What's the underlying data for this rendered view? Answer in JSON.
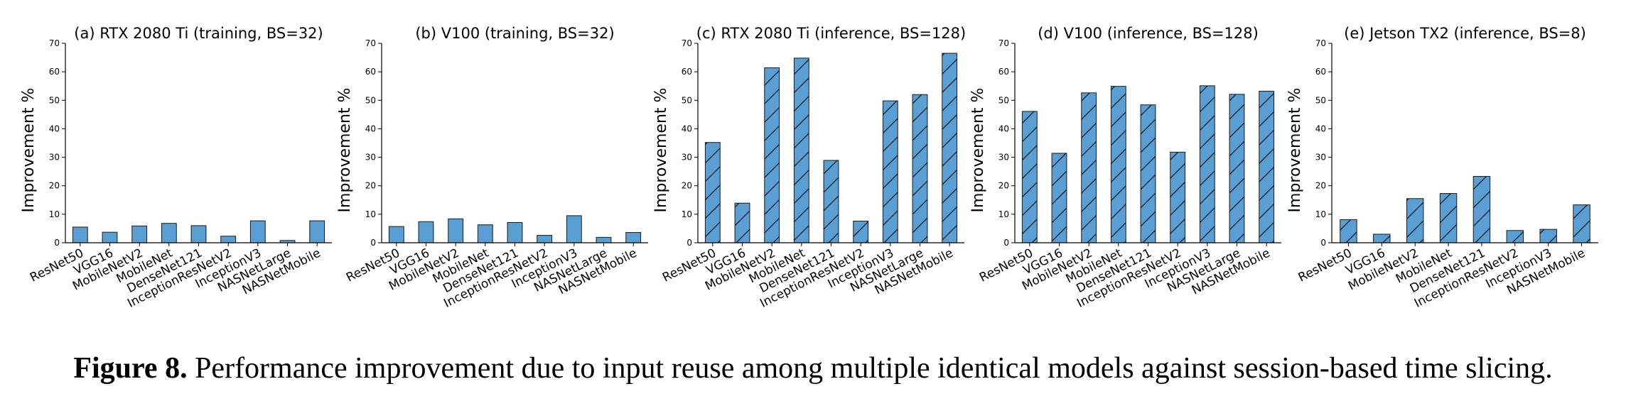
{
  "colors": {
    "bar_fill": "#5a9fd4",
    "bar_edge": "#1a1a1a",
    "axis": "#000000"
  },
  "caption": {
    "label": "Figure 8.",
    "text": " Performance improvement due to input reuse among multiple identical models against session-based time slicing."
  },
  "chart_data": [
    {
      "type": "bar",
      "title": "(a) RTX 2080 Ti (training, BS=32)",
      "ylabel": "Improvement %",
      "xlabel": "",
      "ylim": [
        0,
        70
      ],
      "yticks": [
        0,
        10,
        20,
        30,
        40,
        50,
        60,
        70
      ],
      "hatch": false,
      "categories": [
        "ResNet50",
        "VGG16",
        "MobileNetV2",
        "MobileNet",
        "DenseNet121",
        "InceptionResNetV2",
        "InceptionV3",
        "NASNetLarge",
        "NASNetMobile"
      ],
      "values": [
        5.5,
        3.7,
        5.9,
        6.8,
        6.0,
        2.3,
        7.7,
        0.8,
        7.7
      ]
    },
    {
      "type": "bar",
      "title": "(b) V100 (training, BS=32)",
      "ylabel": "Improvement %",
      "xlabel": "",
      "ylim": [
        0,
        70
      ],
      "yticks": [
        0,
        10,
        20,
        30,
        40,
        50,
        60,
        70
      ],
      "hatch": false,
      "categories": [
        "ResNet50",
        "VGG16",
        "MobileNetV2",
        "MobileNet",
        "DenseNet121",
        "InceptionResNetV2",
        "InceptionV3",
        "NASNetLarge",
        "NASNetMobile"
      ],
      "values": [
        5.7,
        7.4,
        8.4,
        6.3,
        7.1,
        2.6,
        9.5,
        1.9,
        3.6
      ]
    },
    {
      "type": "bar",
      "title": "(c) RTX 2080 Ti (inference, BS=128)",
      "ylabel": "Improvement %",
      "xlabel": "",
      "ylim": [
        0,
        70
      ],
      "yticks": [
        0,
        10,
        20,
        30,
        40,
        50,
        60,
        70
      ],
      "hatch": true,
      "categories": [
        "ResNet50",
        "VGG16",
        "MobileNetV2",
        "MobileNet",
        "DenseNet121",
        "InceptionResNetV2",
        "InceptionV3",
        "NASNetLarge",
        "NASNetMobile"
      ],
      "values": [
        35.2,
        13.9,
        61.4,
        64.8,
        28.9,
        7.6,
        49.8,
        52.0,
        66.5
      ]
    },
    {
      "type": "bar",
      "title": "(d) V100 (inference, BS=128)",
      "ylabel": "Improvement %",
      "xlabel": "",
      "ylim": [
        0,
        70
      ],
      "yticks": [
        0,
        10,
        20,
        30,
        40,
        50,
        60,
        70
      ],
      "hatch": true,
      "categories": [
        "ResNet50",
        "VGG16",
        "MobileNetV2",
        "MobileNet",
        "DenseNet121",
        "InceptionResNetV2",
        "InceptionV3",
        "NASNetLarge",
        "NASNetMobile"
      ],
      "values": [
        46.1,
        31.4,
        52.6,
        54.9,
        48.4,
        31.8,
        55.1,
        52.1,
        53.2
      ]
    },
    {
      "type": "bar",
      "title": "(e) Jetson TX2 (inference, BS=8)",
      "ylabel": "Improvement %",
      "xlabel": "",
      "ylim": [
        0,
        70
      ],
      "yticks": [
        0,
        10,
        20,
        30,
        40,
        50,
        60,
        70
      ],
      "hatch": true,
      "categories": [
        "ResNet50",
        "VGG16",
        "MobileNetV2",
        "MobileNet",
        "DenseNet121",
        "InceptionResNetV2",
        "InceptionV3",
        "NASNetMobile"
      ],
      "values": [
        8.1,
        3.0,
        15.5,
        17.3,
        23.3,
        4.3,
        4.7,
        13.3
      ]
    }
  ]
}
